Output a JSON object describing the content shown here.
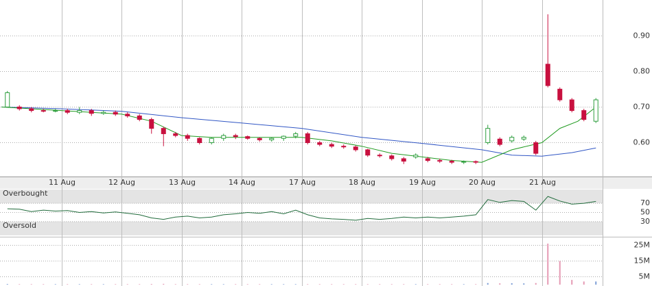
{
  "chart_data": {
    "type": "candlestick",
    "x": [
      1,
      3,
      5,
      7,
      9,
      11,
      13,
      15,
      17,
      19,
      21,
      23,
      25,
      27,
      29,
      31,
      33,
      35,
      37,
      39,
      41,
      43,
      45,
      47,
      49,
      51,
      53,
      55,
      57,
      59,
      61,
      63,
      65,
      67,
      69,
      71,
      73,
      75,
      77,
      79,
      81,
      83,
      85,
      87,
      89,
      91,
      93,
      95,
      97,
      99
    ],
    "open": [
      0.7,
      0.7,
      0.695,
      0.69,
      0.688,
      0.69,
      0.685,
      0.69,
      0.682,
      0.685,
      0.68,
      0.675,
      0.665,
      0.64,
      0.625,
      0.62,
      0.612,
      0.6,
      0.612,
      0.62,
      0.617,
      0.612,
      0.608,
      0.612,
      0.618,
      0.625,
      0.6,
      0.595,
      0.59,
      0.588,
      0.58,
      0.565,
      0.563,
      0.555,
      0.56,
      0.555,
      0.55,
      0.548,
      0.545,
      0.547,
      0.6,
      0.61,
      0.605,
      0.61,
      0.6,
      0.82,
      0.75,
      0.72,
      0.69,
      0.66
    ],
    "high": [
      0.745,
      0.705,
      0.7,
      0.695,
      0.695,
      0.695,
      0.7,
      0.695,
      0.69,
      0.69,
      0.685,
      0.68,
      0.67,
      0.645,
      0.63,
      0.625,
      0.615,
      0.615,
      0.625,
      0.625,
      0.62,
      0.615,
      0.615,
      0.62,
      0.63,
      0.63,
      0.605,
      0.6,
      0.595,
      0.592,
      0.583,
      0.57,
      0.567,
      0.56,
      0.57,
      0.56,
      0.555,
      0.552,
      0.55,
      0.55,
      0.65,
      0.615,
      0.62,
      0.62,
      0.605,
      0.96,
      0.755,
      0.725,
      0.695,
      0.725
    ],
    "low": [
      0.7,
      0.69,
      0.685,
      0.685,
      0.685,
      0.68,
      0.68,
      0.675,
      0.678,
      0.675,
      0.67,
      0.66,
      0.625,
      0.59,
      0.615,
      0.605,
      0.595,
      0.595,
      0.605,
      0.61,
      0.608,
      0.603,
      0.603,
      0.605,
      0.612,
      0.595,
      0.59,
      0.585,
      0.583,
      0.575,
      0.56,
      0.558,
      0.55,
      0.54,
      0.555,
      0.545,
      0.543,
      0.54,
      0.54,
      0.54,
      0.595,
      0.59,
      0.6,
      0.605,
      0.565,
      0.755,
      0.715,
      0.685,
      0.66,
      0.655
    ],
    "close": [
      0.74,
      0.695,
      0.69,
      0.688,
      0.69,
      0.685,
      0.69,
      0.682,
      0.685,
      0.68,
      0.675,
      0.665,
      0.64,
      0.625,
      0.62,
      0.612,
      0.6,
      0.612,
      0.62,
      0.617,
      0.612,
      0.608,
      0.612,
      0.618,
      0.625,
      0.6,
      0.595,
      0.59,
      0.588,
      0.58,
      0.565,
      0.563,
      0.555,
      0.548,
      0.565,
      0.55,
      0.548,
      0.545,
      0.547,
      0.545,
      0.64,
      0.595,
      0.615,
      0.615,
      0.57,
      0.76,
      0.72,
      0.69,
      0.665,
      0.72
    ],
    "up_color": "#2e9e3e",
    "down_color": "#c8103f",
    "xlim": [
      0,
      100
    ],
    "xticks": [
      {
        "value": 10,
        "label": "11 Aug"
      },
      {
        "value": 20,
        "label": "12 Aug"
      },
      {
        "value": 30,
        "label": "13 Aug"
      },
      {
        "value": 40,
        "label": "14 Aug"
      },
      {
        "value": 50,
        "label": "17 Aug"
      },
      {
        "value": 60,
        "label": "18 Aug"
      },
      {
        "value": 70,
        "label": "19 Aug"
      },
      {
        "value": 80,
        "label": "20 Aug"
      },
      {
        "value": 90,
        "label": "21 Aug"
      }
    ],
    "ylim": [
      0.505,
      1.0
    ],
    "yticks": [
      {
        "value": 0.6,
        "label": "0.60"
      },
      {
        "value": 0.7,
        "label": "0.70"
      },
      {
        "value": 0.8,
        "label": "0.80"
      },
      {
        "value": 0.9,
        "label": "0.90"
      }
    ],
    "overlays": [
      {
        "color": "#2f55c4",
        "x": [
          0,
          10,
          20,
          30,
          40,
          50,
          60,
          70,
          80,
          85,
          90,
          95,
          99
        ],
        "values": [
          0.7,
          0.695,
          0.688,
          0.67,
          0.655,
          0.64,
          0.615,
          0.598,
          0.58,
          0.565,
          0.562,
          0.572,
          0.585
        ]
      },
      {
        "color": "#1f9a1f",
        "x": [
          0,
          10,
          20,
          25,
          30,
          35,
          40,
          50,
          55,
          60,
          65,
          70,
          75,
          80,
          85,
          90,
          93,
          96,
          99
        ],
        "values": [
          0.7,
          0.69,
          0.68,
          0.66,
          0.62,
          0.615,
          0.615,
          0.615,
          0.605,
          0.59,
          0.57,
          0.56,
          0.55,
          0.545,
          0.58,
          0.6,
          0.64,
          0.66,
          0.7
        ]
      }
    ],
    "rsi": {
      "color": "#1f6a3a",
      "values": [
        58,
        57,
        52,
        55,
        53,
        54,
        50,
        52,
        49,
        51,
        48,
        45,
        38,
        35,
        40,
        42,
        38,
        40,
        45,
        47,
        50,
        48,
        52,
        47,
        55,
        45,
        38,
        36,
        35,
        33,
        37,
        35,
        37,
        40,
        38,
        40,
        38,
        40,
        42,
        45,
        78,
        72,
        76,
        74,
        55,
        85,
        75,
        68,
        70,
        74
      ],
      "ylim": [
        0,
        100
      ],
      "yticks": [
        30,
        50,
        70
      ],
      "overbought": {
        "label": "Overbought",
        "from": 70,
        "to": 100
      },
      "oversold": {
        "label": "Oversold",
        "from": 0,
        "to": 30
      }
    },
    "volume": {
      "color": "#7f9fd6",
      "values": [
        0.4,
        0.3,
        0.3,
        0.3,
        0.3,
        0.3,
        0.3,
        0.3,
        0.3,
        0.3,
        0.3,
        0.3,
        0.4,
        0.5,
        0.3,
        0.3,
        0.3,
        0.3,
        0.3,
        0.3,
        0.3,
        0.3,
        0.3,
        0.3,
        0.3,
        0.3,
        0.3,
        0.3,
        0.3,
        0.3,
        0.3,
        0.3,
        0.3,
        0.3,
        0.3,
        0.3,
        0.3,
        0.3,
        0.3,
        0.3,
        1,
        0.8,
        0.9,
        0.8,
        1,
        26,
        15,
        3,
        2,
        2
      ],
      "ylim": [
        0,
        29.5
      ],
      "yticks": [
        {
          "value": 5,
          "label": "5M"
        },
        {
          "value": 15,
          "label": "15M"
        },
        {
          "value": 25,
          "label": "25M"
        }
      ]
    }
  }
}
